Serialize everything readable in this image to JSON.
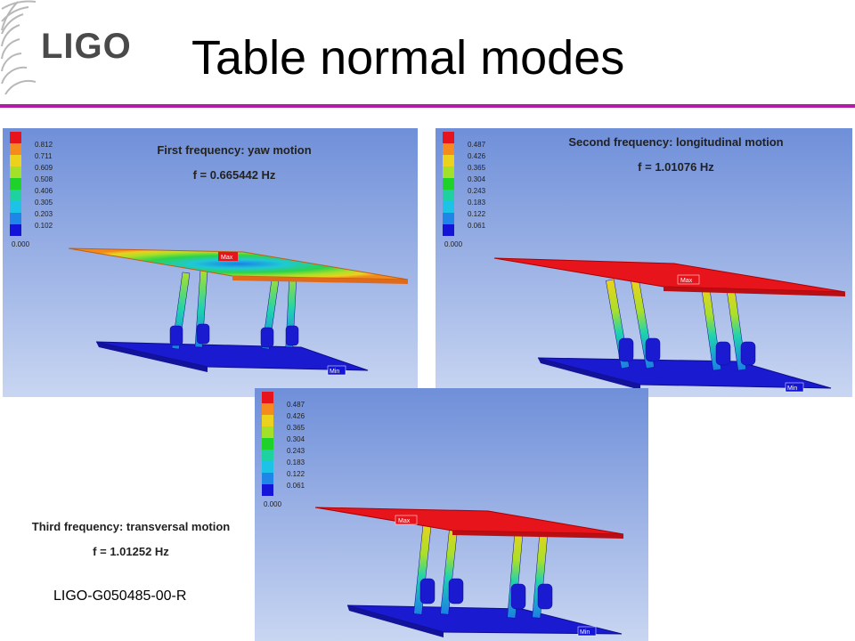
{
  "logo": {
    "text": "LIGO"
  },
  "title": "Table normal modes",
  "panels": [
    {
      "caption_line1": "First frequency: yaw motion",
      "caption_line2": "f = 0.665442 Hz",
      "legend": [
        "0.812",
        "0.711",
        "0.609",
        "0.508",
        "0.406",
        "0.305",
        "0.203",
        "0.102",
        "0.000"
      ],
      "max_label": "Max",
      "min_label": "Min"
    },
    {
      "caption_line1": "Second frequency: longitudinal motion",
      "caption_line2": "f = 1.01076 Hz",
      "legend": [
        "0.487",
        "0.426",
        "0.365",
        "0.304",
        "0.243",
        "0.183",
        "0.122",
        "0.061",
        "0.000"
      ],
      "max_label": "Max",
      "min_label": "Min"
    },
    {
      "caption_line1": "Third frequency: transversal motion",
      "caption_line2": "f = 1.01252 Hz",
      "legend": [
        "0.487",
        "0.426",
        "0.365",
        "0.304",
        "0.243",
        "0.183",
        "0.122",
        "0.061",
        "0.000"
      ],
      "max_label": "Max",
      "min_label": "Min"
    }
  ],
  "legend_colors": [
    "#e8141c",
    "#f58a1e",
    "#ecd11d",
    "#a3e02a",
    "#1fd22a",
    "#1fd0a0",
    "#1dc3e6",
    "#1d86e8",
    "#1414d8"
  ],
  "doc_id": "LIGO-G050485-00-R"
}
